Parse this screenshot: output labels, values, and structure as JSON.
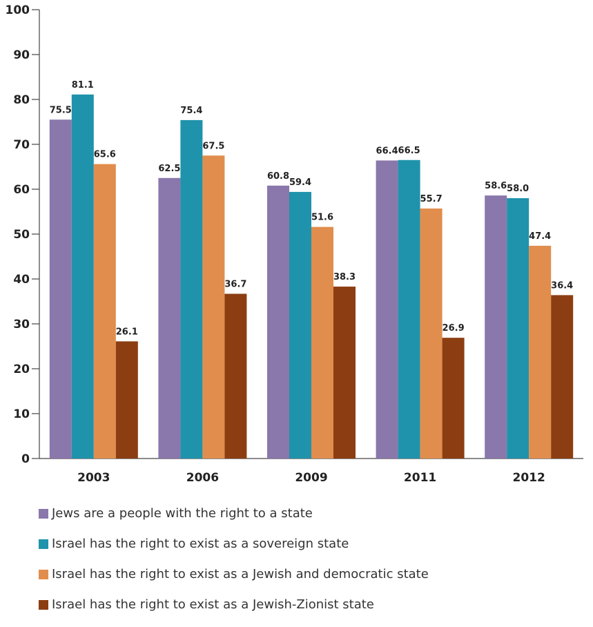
{
  "chart_data": {
    "type": "bar",
    "categories": [
      "2003",
      "2006",
      "2009",
      "2011",
      "2012"
    ],
    "series": [
      {
        "name": "Jews are a people with the right to a state",
        "color": "#8a77ab",
        "values": [
          75.5,
          62.5,
          60.8,
          66.4,
          58.6
        ]
      },
      {
        "name": "Israel has the right to exist as a sovereign state",
        "color": "#1f93ab",
        "values": [
          81.1,
          75.4,
          59.4,
          66.5,
          58.0
        ]
      },
      {
        "name": "Israel has the right to exist as a Jewish and democratic state",
        "color": "#e18d4d",
        "values": [
          65.6,
          67.5,
          51.6,
          55.7,
          47.4
        ]
      },
      {
        "name": "Israel has the right to exist as a Jewish-Zionist state",
        "color": "#8c3e12",
        "values": [
          26.1,
          36.7,
          38.3,
          26.9,
          36.4
        ]
      }
    ],
    "data_labels": [
      [
        "75.5",
        "62.5",
        "60.8",
        "66.4",
        "58.6"
      ],
      [
        "81.1",
        "75.4",
        "59.4",
        "66.5",
        "58.0"
      ],
      [
        "65.6",
        "67.5",
        "51.6",
        "55.7",
        "47.4"
      ],
      [
        "26.1",
        "36.7",
        "38.3",
        "26.9",
        "36.4"
      ]
    ],
    "yticks": [
      "0",
      "10",
      "20",
      "30",
      "40",
      "50",
      "60",
      "70",
      "80",
      "90",
      "100"
    ],
    "ylim": [
      0,
      100
    ],
    "title": "",
    "xlabel": "",
    "ylabel": "",
    "grid": false,
    "legend_position": "bottom"
  }
}
